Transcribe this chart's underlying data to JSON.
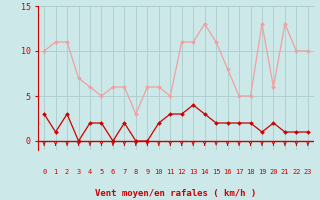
{
  "hours": [
    0,
    1,
    2,
    3,
    4,
    5,
    6,
    7,
    8,
    9,
    10,
    11,
    12,
    13,
    14,
    15,
    16,
    17,
    18,
    19,
    20,
    21,
    22,
    23
  ],
  "wind_avg": [
    3,
    1,
    3,
    0,
    2,
    2,
    0,
    2,
    0,
    0,
    2,
    3,
    3,
    4,
    3,
    2,
    2,
    2,
    2,
    1,
    2,
    1,
    1,
    1
  ],
  "wind_gust": [
    10,
    11,
    11,
    7,
    6,
    5,
    6,
    6,
    3,
    6,
    6,
    5,
    11,
    11,
    13,
    11,
    8,
    5,
    5,
    13,
    6,
    13,
    10,
    10
  ],
  "avg_color": "#cc0000",
  "gust_color": "#f0a0a0",
  "bg_color": "#cce8e8",
  "grid_color": "#aacccc",
  "xlabel": "Vent moyen/en rafales ( km/h )",
  "xlabel_color": "#cc0000",
  "tick_color": "#cc0000",
  "arrow_color": "#cc0000",
  "ylim": [
    -1,
    15
  ],
  "yticks": [
    0,
    5,
    10,
    15
  ],
  "axis_line_color": "#cc0000"
}
